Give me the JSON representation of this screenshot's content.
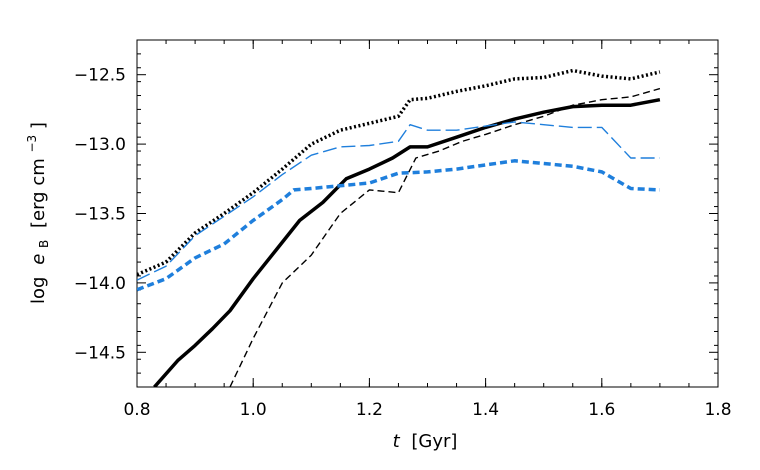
{
  "chart_data": {
    "type": "line",
    "xlabel_var": "t",
    "xlabel_unit": "[Gyr]",
    "ylabel_prefix": "log",
    "ylabel_var": "e",
    "ylabel_sub": "B",
    "ylabel_unit": "[erg cm",
    "ylabel_exp": "−3",
    "ylabel_close": "]",
    "xlim": [
      0.8,
      1.8
    ],
    "ylim": [
      -14.75,
      -12.25
    ],
    "xticks": [
      0.8,
      1.0,
      1.2,
      1.4,
      1.6,
      1.8
    ],
    "xtick_labels": [
      "0.8",
      "1.0",
      "1.2",
      "1.4",
      "1.6",
      "1.8"
    ],
    "yticks": [
      -14.5,
      -14.0,
      -13.5,
      -13.0,
      -12.5
    ],
    "ytick_labels": [
      "−14.5",
      "−14.0",
      "−13.5",
      "−13.0",
      "−12.5"
    ],
    "series": [
      {
        "color": "#000000",
        "style": "dotted",
        "width": 3.5,
        "x": [
          0.8,
          0.85,
          0.9,
          0.95,
          1.0,
          1.05,
          1.1,
          1.15,
          1.2,
          1.25,
          1.27,
          1.3,
          1.35,
          1.4,
          1.45,
          1.5,
          1.55,
          1.6,
          1.65,
          1.7
        ],
        "y": [
          -13.94,
          -13.85,
          -13.64,
          -13.5,
          -13.35,
          -13.18,
          -13.0,
          -12.9,
          -12.85,
          -12.8,
          -12.68,
          -12.67,
          -12.62,
          -12.58,
          -12.53,
          -12.52,
          -12.47,
          -12.51,
          -12.53,
          -12.48
        ]
      },
      {
        "color": "#000000",
        "style": "solid",
        "width": 3.5,
        "x": [
          0.83,
          0.87,
          0.9,
          0.93,
          0.96,
          1.0,
          1.04,
          1.08,
          1.12,
          1.16,
          1.2,
          1.24,
          1.27,
          1.3,
          1.35,
          1.4,
          1.45,
          1.5,
          1.55,
          1.6,
          1.65,
          1.7
        ],
        "y": [
          -14.75,
          -14.56,
          -14.45,
          -14.33,
          -14.2,
          -13.97,
          -13.76,
          -13.55,
          -13.42,
          -13.25,
          -13.18,
          -13.1,
          -13.02,
          -13.02,
          -12.95,
          -12.88,
          -12.82,
          -12.77,
          -12.73,
          -12.72,
          -12.72,
          -12.68
        ]
      },
      {
        "color": "#000000",
        "style": "dashed",
        "width": 1.4,
        "x": [
          0.96,
          1.0,
          1.05,
          1.1,
          1.15,
          1.2,
          1.25,
          1.28,
          1.32,
          1.36,
          1.4,
          1.45,
          1.5,
          1.55,
          1.6,
          1.65,
          1.7
        ],
        "y": [
          -14.75,
          -14.4,
          -14.0,
          -13.8,
          -13.5,
          -13.33,
          -13.35,
          -13.1,
          -13.05,
          -12.98,
          -12.93,
          -12.86,
          -12.8,
          -12.72,
          -12.68,
          -12.66,
          -12.6
        ]
      },
      {
        "color": "#1f7fdc",
        "style": "longdash",
        "width": 1.4,
        "x": [
          0.8,
          0.85,
          0.9,
          0.95,
          1.0,
          1.05,
          1.1,
          1.15,
          1.2,
          1.25,
          1.27,
          1.3,
          1.35,
          1.4,
          1.45,
          1.5,
          1.55,
          1.6,
          1.65,
          1.7
        ],
        "y": [
          -13.98,
          -13.88,
          -13.66,
          -13.52,
          -13.38,
          -13.22,
          -13.08,
          -13.02,
          -13.01,
          -12.98,
          -12.86,
          -12.9,
          -12.9,
          -12.87,
          -12.84,
          -12.86,
          -12.88,
          -12.88,
          -13.1,
          -13.1
        ]
      },
      {
        "color": "#1f7fdc",
        "style": "dashed",
        "width": 3.5,
        "x": [
          0.8,
          0.85,
          0.9,
          0.95,
          1.0,
          1.05,
          1.07,
          1.1,
          1.15,
          1.2,
          1.25,
          1.3,
          1.35,
          1.4,
          1.45,
          1.5,
          1.55,
          1.6,
          1.65,
          1.7
        ],
        "y": [
          -14.05,
          -13.97,
          -13.82,
          -13.72,
          -13.55,
          -13.4,
          -13.33,
          -13.32,
          -13.3,
          -13.28,
          -13.21,
          -13.2,
          -13.18,
          -13.15,
          -13.12,
          -13.14,
          -13.16,
          -13.2,
          -13.32,
          -13.33
        ]
      }
    ]
  }
}
